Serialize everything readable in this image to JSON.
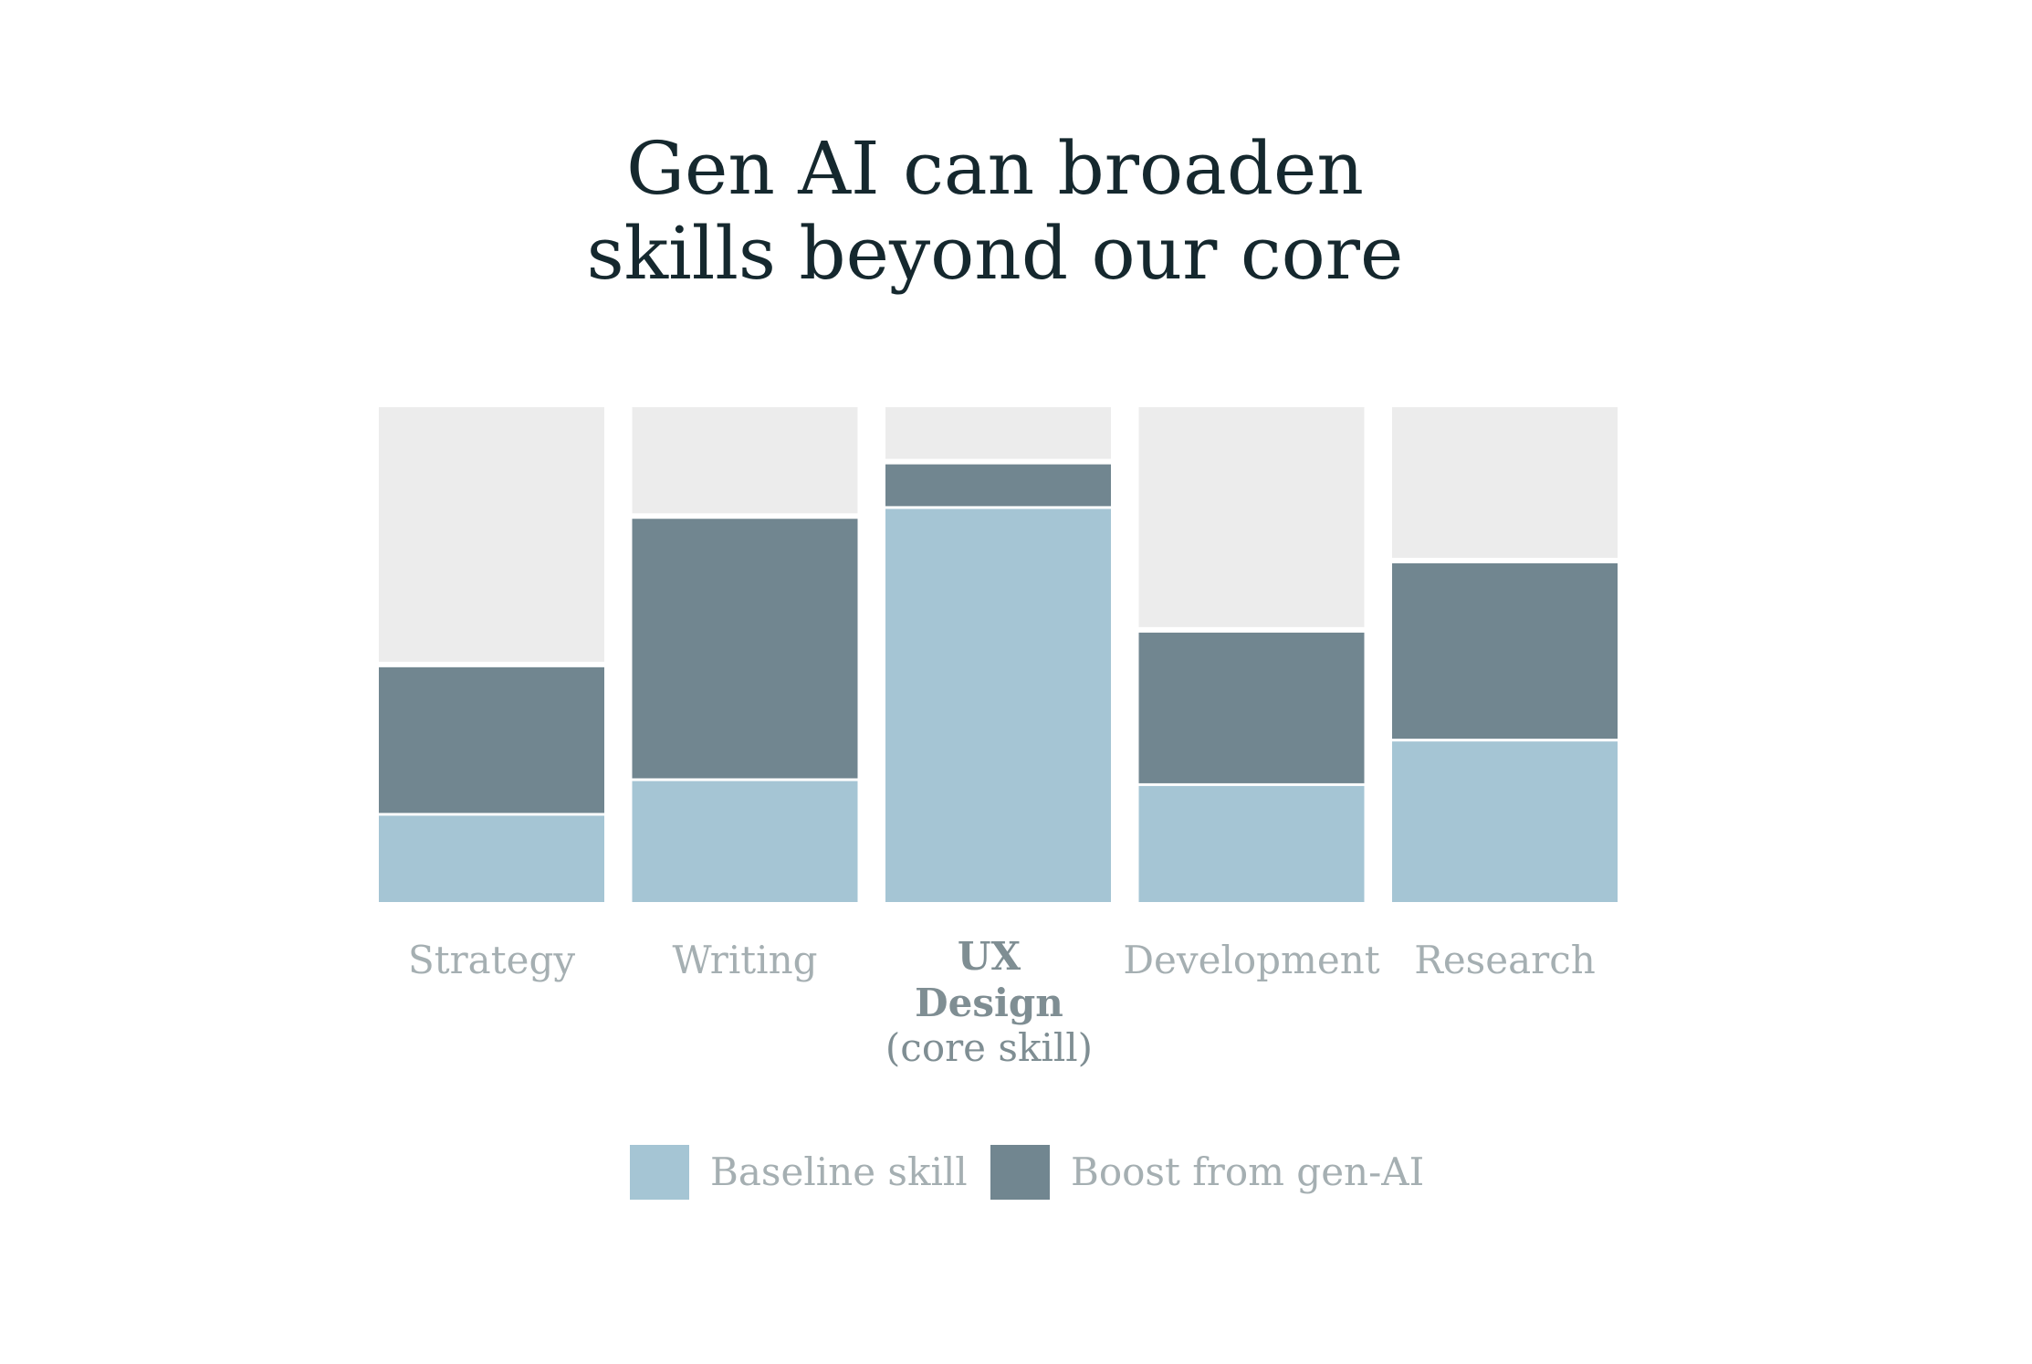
{
  "chart_data": {
    "type": "bar",
    "stacked": true,
    "title_lines": [
      "Gen AI can broaden",
      "skills beyond our core"
    ],
    "categories": [
      {
        "label": "Strategy"
      },
      {
        "label": "Writing"
      },
      {
        "label": "UX",
        "label2": "Design",
        "sub": "(core skill)",
        "highlight": true
      },
      {
        "label": "Development"
      },
      {
        "label": "Research"
      }
    ],
    "series": [
      {
        "name": "Baseline skill",
        "color": "#a5c5d4",
        "values": [
          18,
          25,
          80,
          24,
          33
        ]
      },
      {
        "name": "Boost from gen-AI",
        "color": "#718690",
        "values": [
          30,
          53,
          9,
          31,
          36
        ]
      }
    ],
    "remainder_color": "#ececec",
    "ylim": [
      0,
      100
    ],
    "grid": false,
    "legend_position": "bottom"
  }
}
